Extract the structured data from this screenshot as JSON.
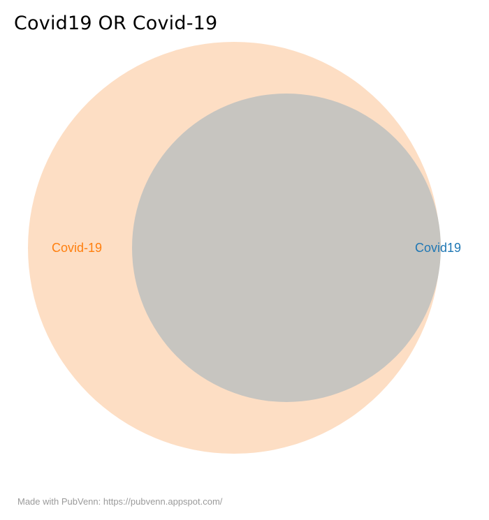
{
  "title": "Covid19 OR Covid-19",
  "sets": [
    {
      "name": "Covid-19",
      "color": "#ff7f0e",
      "fill": "#fddec4"
    },
    {
      "name": "Covid19",
      "color": "#1f77b4",
      "fill": "#c7c5c0"
    }
  ],
  "footer": "Made with PubVenn: https://pubvenn.appspot.com/"
}
